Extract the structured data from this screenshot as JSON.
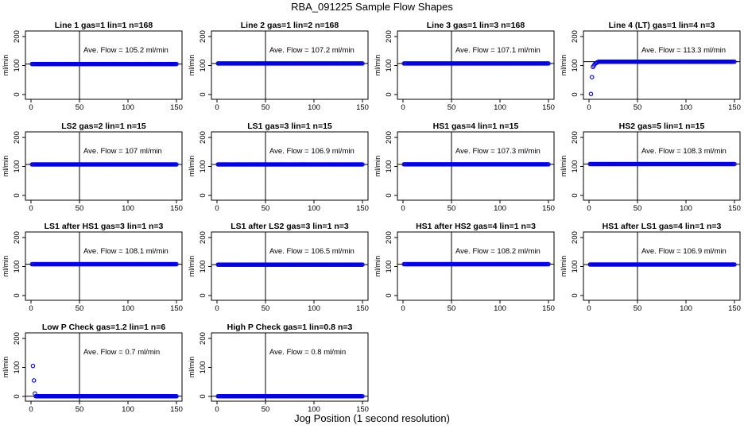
{
  "figure": {
    "title": "RBA_091225  Sample Flow Shapes",
    "xlabel": "Jog Position (1 second resolution)"
  },
  "style": {
    "point_color": "#0000ee",
    "line_color": "#000000"
  },
  "chart_data": [
    {
      "type": "scatter",
      "title": "Line 1 gas=1 lin=1 n=168",
      "ylabel": "ml/min",
      "xlim": [
        0,
        150
      ],
      "ylim": [
        0,
        200
      ],
      "xticks": [
        0,
        50,
        100,
        150
      ],
      "yticks": [
        0,
        100,
        200
      ],
      "vline_x": 50,
      "hline_y": 105.2,
      "annotation": "Ave. Flow =  105.2  ml/min",
      "points": {
        "x_start": 1,
        "x_end": 150,
        "y": 105.2,
        "startup": []
      }
    },
    {
      "type": "scatter",
      "title": "Line 2 gas=1 lin=2 n=168",
      "ylabel": "ml/min",
      "xlim": [
        0,
        150
      ],
      "ylim": [
        0,
        200
      ],
      "xticks": [
        0,
        50,
        100,
        150
      ],
      "yticks": [
        0,
        100,
        200
      ],
      "vline_x": 50,
      "hline_y": 107.2,
      "annotation": "Ave. Flow =  107.2  ml/min",
      "points": {
        "x_start": 1,
        "x_end": 150,
        "y": 107.2,
        "startup": []
      }
    },
    {
      "type": "scatter",
      "title": "Line 3 gas=1 lin=3 n=168",
      "ylabel": "ml/min",
      "xlim": [
        0,
        150
      ],
      "ylim": [
        0,
        200
      ],
      "xticks": [
        0,
        50,
        100,
        150
      ],
      "yticks": [
        0,
        100,
        200
      ],
      "vline_x": 50,
      "hline_y": 107.1,
      "annotation": "Ave. Flow =  107.1  ml/min",
      "points": {
        "x_start": 1,
        "x_end": 150,
        "y": 107.1,
        "startup": []
      }
    },
    {
      "type": "scatter",
      "title": "Line 4 (LT) gas=1 lin=4 n=3",
      "ylabel": "ml/min",
      "xlim": [
        0,
        150
      ],
      "ylim": [
        0,
        200
      ],
      "xticks": [
        0,
        50,
        100,
        150
      ],
      "yticks": [
        0,
        100,
        200
      ],
      "vline_x": 50,
      "hline_y": 113.3,
      "annotation": "Ave. Flow =  113.3  ml/min",
      "points": {
        "x_start": 10,
        "x_end": 150,
        "y": 113.3,
        "startup": [
          [
            2,
            2
          ],
          [
            3,
            60
          ],
          [
            4,
            95
          ],
          [
            5,
            100
          ],
          [
            6,
            105
          ],
          [
            7,
            108
          ],
          [
            8,
            110
          ],
          [
            9,
            112
          ]
        ]
      }
    },
    {
      "type": "scatter",
      "title": "LS2 gas=2 lin=1 n=15",
      "ylabel": "ml/min",
      "xlim": [
        0,
        150
      ],
      "ylim": [
        0,
        200
      ],
      "xticks": [
        0,
        50,
        100,
        150
      ],
      "yticks": [
        0,
        100,
        200
      ],
      "vline_x": 50,
      "hline_y": 107,
      "annotation": "Ave. Flow =  107  ml/min",
      "points": {
        "x_start": 1,
        "x_end": 150,
        "y": 107,
        "startup": []
      }
    },
    {
      "type": "scatter",
      "title": "LS1 gas=3 lin=1 n=15",
      "ylabel": "ml/min",
      "xlim": [
        0,
        150
      ],
      "ylim": [
        0,
        200
      ],
      "xticks": [
        0,
        50,
        100,
        150
      ],
      "yticks": [
        0,
        100,
        200
      ],
      "vline_x": 50,
      "hline_y": 106.9,
      "annotation": "Ave. Flow =  106.9  ml/min",
      "points": {
        "x_start": 1,
        "x_end": 150,
        "y": 106.9,
        "startup": []
      }
    },
    {
      "type": "scatter",
      "title": "HS1 gas=4 lin=1 n=15",
      "ylabel": "ml/min",
      "xlim": [
        0,
        150
      ],
      "ylim": [
        0,
        200
      ],
      "xticks": [
        0,
        50,
        100,
        150
      ],
      "yticks": [
        0,
        100,
        200
      ],
      "vline_x": 50,
      "hline_y": 107.3,
      "annotation": "Ave. Flow =  107.3  ml/min",
      "points": {
        "x_start": 1,
        "x_end": 150,
        "y": 107.3,
        "startup": []
      }
    },
    {
      "type": "scatter",
      "title": "HS2 gas=5 lin=1 n=15",
      "ylabel": "ml/min",
      "xlim": [
        0,
        150
      ],
      "ylim": [
        0,
        200
      ],
      "xticks": [
        0,
        50,
        100,
        150
      ],
      "yticks": [
        0,
        100,
        200
      ],
      "vline_x": 50,
      "hline_y": 108.3,
      "annotation": "Ave. Flow =  108.3  ml/min",
      "points": {
        "x_start": 1,
        "x_end": 150,
        "y": 108.3,
        "startup": []
      }
    },
    {
      "type": "scatter",
      "title": "LS1 after HS1 gas=3 lin=1 n=3",
      "ylabel": "ml/min",
      "xlim": [
        0,
        150
      ],
      "ylim": [
        0,
        200
      ],
      "xticks": [
        0,
        50,
        100,
        150
      ],
      "yticks": [
        0,
        100,
        200
      ],
      "vline_x": 50,
      "hline_y": 108.1,
      "annotation": "Ave. Flow =  108.1  ml/min",
      "points": {
        "x_start": 1,
        "x_end": 150,
        "y": 108.1,
        "startup": []
      }
    },
    {
      "type": "scatter",
      "title": "LS1 after LS2 gas=3 lin=1 n=3",
      "ylabel": "ml/min",
      "xlim": [
        0,
        150
      ],
      "ylim": [
        0,
        200
      ],
      "xticks": [
        0,
        50,
        100,
        150
      ],
      "yticks": [
        0,
        100,
        200
      ],
      "vline_x": 50,
      "hline_y": 106.5,
      "annotation": "Ave. Flow =  106.5  ml/min",
      "points": {
        "x_start": 1,
        "x_end": 150,
        "y": 106.5,
        "startup": []
      }
    },
    {
      "type": "scatter",
      "title": "HS1 after HS2 gas=4 lin=1 n=3",
      "ylabel": "ml/min",
      "xlim": [
        0,
        150
      ],
      "ylim": [
        0,
        200
      ],
      "xticks": [
        0,
        50,
        100,
        150
      ],
      "yticks": [
        0,
        100,
        200
      ],
      "vline_x": 50,
      "hline_y": 108.2,
      "annotation": "Ave. Flow =  108.2  ml/min",
      "points": {
        "x_start": 1,
        "x_end": 150,
        "y": 108.2,
        "startup": []
      }
    },
    {
      "type": "scatter",
      "title": "HS1 after LS1 gas=4 lin=1 n=3",
      "ylabel": "ml/min",
      "xlim": [
        0,
        150
      ],
      "ylim": [
        0,
        200
      ],
      "xticks": [
        0,
        50,
        100,
        150
      ],
      "yticks": [
        0,
        100,
        200
      ],
      "vline_x": 50,
      "hline_y": 106.9,
      "annotation": "Ave. Flow =  106.9  ml/min",
      "points": {
        "x_start": 1,
        "x_end": 150,
        "y": 106.9,
        "startup": []
      }
    },
    {
      "type": "scatter",
      "title": "Low P Check gas=1.2 lin=1 n=6",
      "ylabel": "ml/min",
      "xlim": [
        0,
        150
      ],
      "ylim": [
        0,
        200
      ],
      "xticks": [
        0,
        50,
        100,
        150
      ],
      "yticks": [
        0,
        100,
        200
      ],
      "vline_x": 50,
      "hline_y": 0.7,
      "annotation": "Ave. Flow =  0.7  ml/min",
      "points": {
        "x_start": 5,
        "x_end": 150,
        "y": 0.7,
        "startup": [
          [
            2,
            105
          ],
          [
            3,
            55
          ],
          [
            4,
            10
          ]
        ]
      }
    },
    {
      "type": "scatter",
      "title": "High P Check gas=1 lin=0.8 n=3",
      "ylabel": "ml/min",
      "xlim": [
        0,
        150
      ],
      "ylim": [
        0,
        200
      ],
      "xticks": [
        0,
        50,
        100,
        150
      ],
      "yticks": [
        0,
        100,
        200
      ],
      "vline_x": 50,
      "hline_y": 0.8,
      "annotation": "Ave. Flow =  0.8  ml/min",
      "points": {
        "x_start": 1,
        "x_end": 150,
        "y": 0.8,
        "startup": []
      }
    }
  ]
}
